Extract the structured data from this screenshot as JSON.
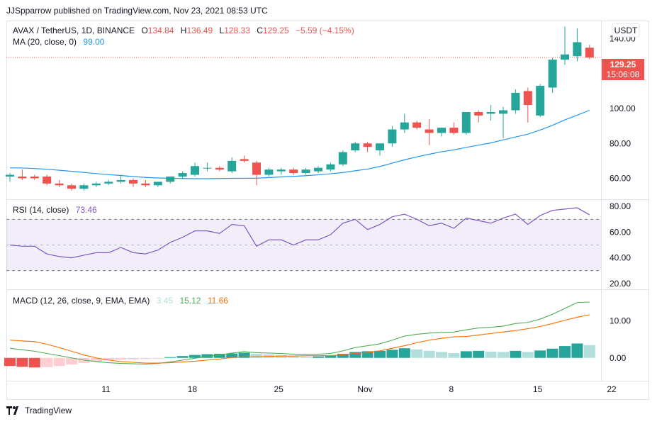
{
  "header": {
    "published": "JJSpparrow published on TradingView.com, Nov 23, 2021 08:53 UTC"
  },
  "legend": {
    "symbol": "AVAX / TetherUS, 1D, BINANCE",
    "open_label": "O",
    "open": "134.84",
    "high_label": "H",
    "high": "136.49",
    "low_label": "L",
    "low": "128.33",
    "close_label": "C",
    "close": "129.25",
    "change": "−5.59 (−4.15%)",
    "ma_label": "MA (20, close, 0)",
    "ma_value": "99.00",
    "rsi_label": "RSI (14, close)",
    "rsi_value": "73.46",
    "macd_label": "MACD (12, 26, close, 9, EMA, EMA)",
    "macd_hist": "3.45",
    "macd_line": "15.12",
    "macd_signal": "11.66"
  },
  "currency_button": "USDT",
  "price_tag": {
    "price": "129.25",
    "countdown": "15:06:08"
  },
  "footer": {
    "brand": "TradingView"
  },
  "colors": {
    "up": "#26a69a",
    "down": "#ef5350",
    "ma": "#2196f3",
    "rsi": "#7e57c2",
    "macd": "#4caf50",
    "signal": "#ff6d00",
    "hist_up_strong": "#26a69a",
    "hist_up_weak": "#b2dfdb",
    "hist_down_strong": "#ef5350",
    "hist_down_weak": "#ffcdd2"
  },
  "chart_data": [
    {
      "type": "candlestick",
      "x_ticks": [
        "11",
        "18",
        "25",
        "Nov",
        "8",
        "15",
        "22"
      ],
      "y_ticks": [
        "60.00",
        "80.00",
        "100.00",
        "140.00"
      ],
      "ylim": [
        48,
        150
      ],
      "candles": [
        {
          "o": 61,
          "h": 63,
          "l": 58,
          "c": 62
        },
        {
          "o": 61,
          "h": 65,
          "l": 59,
          "c": 60
        },
        {
          "o": 61,
          "h": 62,
          "l": 59,
          "c": 60
        },
        {
          "o": 61,
          "h": 62,
          "l": 56,
          "c": 57
        },
        {
          "o": 57,
          "h": 59,
          "l": 55,
          "c": 56
        },
        {
          "o": 56,
          "h": 57,
          "l": 53,
          "c": 54
        },
        {
          "o": 54,
          "h": 57,
          "l": 53,
          "c": 56
        },
        {
          "o": 56,
          "h": 58,
          "l": 55,
          "c": 57
        },
        {
          "o": 57,
          "h": 59,
          "l": 56,
          "c": 58
        },
        {
          "o": 58,
          "h": 62,
          "l": 57,
          "c": 59
        },
        {
          "o": 59,
          "h": 60,
          "l": 55,
          "c": 57
        },
        {
          "o": 57,
          "h": 59,
          "l": 55,
          "c": 56
        },
        {
          "o": 56,
          "h": 58,
          "l": 55,
          "c": 58
        },
        {
          "o": 58,
          "h": 61,
          "l": 57,
          "c": 61
        },
        {
          "o": 61,
          "h": 64,
          "l": 60,
          "c": 63
        },
        {
          "o": 62,
          "h": 69,
          "l": 61,
          "c": 67
        },
        {
          "o": 66,
          "h": 69,
          "l": 64,
          "c": 66
        },
        {
          "o": 66,
          "h": 67,
          "l": 64,
          "c": 65
        },
        {
          "o": 64,
          "h": 72,
          "l": 63,
          "c": 70
        },
        {
          "o": 71,
          "h": 73,
          "l": 69,
          "c": 70
        },
        {
          "o": 69,
          "h": 70,
          "l": 56,
          "c": 62
        },
        {
          "o": 62,
          "h": 66,
          "l": 61,
          "c": 65
        },
        {
          "o": 64,
          "h": 66,
          "l": 62,
          "c": 65
        },
        {
          "o": 65,
          "h": 66,
          "l": 62,
          "c": 63
        },
        {
          "o": 63,
          "h": 66,
          "l": 62,
          "c": 65
        },
        {
          "o": 64,
          "h": 67,
          "l": 63,
          "c": 66
        },
        {
          "o": 65,
          "h": 69,
          "l": 64,
          "c": 68
        },
        {
          "o": 68,
          "h": 76,
          "l": 67,
          "c": 75
        },
        {
          "o": 76,
          "h": 81,
          "l": 75,
          "c": 80
        },
        {
          "o": 80,
          "h": 81,
          "l": 75,
          "c": 78
        },
        {
          "o": 76,
          "h": 80,
          "l": 73,
          "c": 80
        },
        {
          "o": 80,
          "h": 90,
          "l": 78,
          "c": 88
        },
        {
          "o": 88,
          "h": 97,
          "l": 86,
          "c": 92
        },
        {
          "o": 92,
          "h": 93,
          "l": 88,
          "c": 89
        },
        {
          "o": 88,
          "h": 94,
          "l": 79,
          "c": 86
        },
        {
          "o": 86,
          "h": 89,
          "l": 84,
          "c": 89
        },
        {
          "o": 89,
          "h": 92,
          "l": 85,
          "c": 86
        },
        {
          "o": 86,
          "h": 98,
          "l": 85,
          "c": 98
        },
        {
          "o": 98,
          "h": 99,
          "l": 92,
          "c": 96
        },
        {
          "o": 97,
          "h": 102,
          "l": 93,
          "c": 98
        },
        {
          "o": 97,
          "h": 101,
          "l": 83,
          "c": 99
        },
        {
          "o": 99,
          "h": 111,
          "l": 97,
          "c": 109
        },
        {
          "o": 110,
          "h": 112,
          "l": 92,
          "c": 102
        },
        {
          "o": 96,
          "h": 114,
          "l": 95,
          "c": 113
        },
        {
          "o": 112,
          "h": 129,
          "l": 109,
          "c": 128
        },
        {
          "o": 128,
          "h": 147,
          "l": 125,
          "c": 131
        },
        {
          "o": 130,
          "h": 146,
          "l": 127,
          "c": 138
        },
        {
          "o": 134.84,
          "h": 136.49,
          "l": 128.33,
          "c": 129.25
        }
      ],
      "ma": [
        66,
        65.9,
        65.6,
        65.2,
        64.6,
        64,
        63.4,
        62.7,
        62.1,
        61.6,
        61,
        60.5,
        60.2,
        60,
        59.9,
        59.8,
        59.8,
        59.9,
        60,
        60,
        60.1,
        60.4,
        60.8,
        61.1,
        61.5,
        62,
        62.6,
        63.3,
        64.3,
        65.3,
        66.8,
        68.7,
        70.6,
        72.3,
        73.8,
        75.2,
        76.3,
        77.7,
        79,
        80.3,
        82,
        83.7,
        85.3,
        87.7,
        90.4,
        93.5,
        96.2,
        99
      ]
    },
    {
      "type": "line",
      "title": "RSI",
      "y_ticks": [
        "20.00",
        "40.00",
        "60.00",
        "80.00"
      ],
      "ylim": [
        16,
        84
      ],
      "bands": [
        30,
        50,
        70
      ],
      "values": [
        50,
        49,
        49,
        43,
        41,
        40,
        42,
        44,
        44,
        48,
        44,
        43,
        46,
        52,
        56,
        61,
        61,
        59,
        66,
        65,
        49,
        54,
        54,
        50,
        54,
        54,
        58,
        67,
        70,
        62,
        66,
        72,
        74,
        70,
        65,
        67,
        63,
        71,
        69,
        67,
        71,
        74,
        66,
        73,
        77,
        78,
        79,
        73.46
      ]
    },
    {
      "type": "bar",
      "title": "MACD",
      "y_ticks": [
        "0.00",
        "10.00"
      ],
      "ylim": [
        -6,
        18
      ],
      "hist": [
        -2.2,
        -2.4,
        -2.6,
        -2.5,
        -2.2,
        -1.8,
        -1.4,
        -1,
        -0.7,
        -0.5,
        -0.4,
        -0.3,
        -0.1,
        0.2,
        0.5,
        0.8,
        1,
        1.1,
        1.2,
        1.4,
        1.1,
        0.9,
        0.7,
        0.5,
        0.4,
        0.4,
        0.6,
        1.1,
        1.6,
        1.8,
        1.9,
        2.2,
        2.6,
        2.3,
        1.9,
        1.6,
        1.3,
        1.8,
        1.9,
        1.7,
        1.6,
        1.9,
        1.6,
        2,
        2.5,
        3.2,
        3.9,
        3.45
      ],
      "macd": [
        2.6,
        2.2,
        1.8,
        1.2,
        0.6,
        0,
        -0.6,
        -1,
        -1.3,
        -1.5,
        -1.6,
        -1.7,
        -1.5,
        -1.1,
        -0.6,
        -0.1,
        0.4,
        0.8,
        1.3,
        1.7,
        1.4,
        1.3,
        1.2,
        1,
        1,
        1,
        1.2,
        1.9,
        2.8,
        3.3,
        3.8,
        4.8,
        5.9,
        6.4,
        6.7,
        6.9,
        7,
        7.6,
        8.1,
        8.3,
        8.6,
        9.3,
        9.6,
        10.5,
        11.8,
        13.4,
        15,
        15.12
      ],
      "signal": [
        4.8,
        4.6,
        4.4,
        3.7,
        2.8,
        1.8,
        0.8,
        0,
        -0.6,
        -1,
        -1.2,
        -1.4,
        -1.4,
        -1.3,
        -1.1,
        -0.9,
        -0.6,
        -0.3,
        0.1,
        0.3,
        0.3,
        0.4,
        0.5,
        0.5,
        0.6,
        0.6,
        0.6,
        0.8,
        1.2,
        1.5,
        1.9,
        2.6,
        3.3,
        4.1,
        4.8,
        5.3,
        5.7,
        5.8,
        6.2,
        6.6,
        7,
        7.4,
        7.9,
        8.5,
        9.3,
        10.2,
        11,
        11.66
      ]
    }
  ]
}
